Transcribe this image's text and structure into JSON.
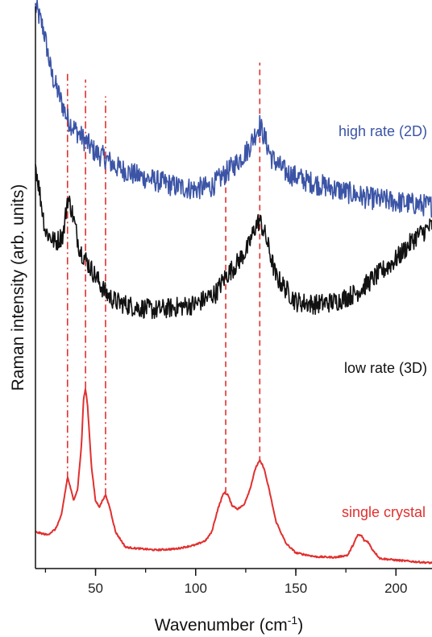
{
  "chart_data": {
    "type": "line",
    "title": "",
    "xlabel_main": "Wavenumber (cm",
    "xlabel_sup": "-1",
    "xlabel_close": ")",
    "ylabel": "Raman intensity (arb. units)",
    "xlim": [
      20,
      218
    ],
    "ylim": [
      0,
      100
    ],
    "xticks": [
      50,
      100,
      150,
      200
    ],
    "xtick_labels": [
      "50",
      "100",
      "150",
      "200"
    ],
    "yticks_shown": false,
    "grid": false,
    "series": [
      {
        "name": "high rate (2D)",
        "color": "#3b54a6",
        "points": [
          [
            20,
            100
          ],
          [
            24,
            96
          ],
          [
            28,
            88
          ],
          [
            32,
            84
          ],
          [
            36,
            80
          ],
          [
            40,
            78
          ],
          [
            45,
            76
          ],
          [
            50,
            74
          ],
          [
            55,
            73
          ],
          [
            60,
            71.5
          ],
          [
            70,
            70
          ],
          [
            80,
            69
          ],
          [
            90,
            68
          ],
          [
            100,
            67.5
          ],
          [
            108,
            68
          ],
          [
            114,
            70
          ],
          [
            120,
            72
          ],
          [
            126,
            74.5
          ],
          [
            130,
            77.5
          ],
          [
            132,
            79
          ],
          [
            134,
            77
          ],
          [
            138,
            73
          ],
          [
            145,
            70.5
          ],
          [
            155,
            69
          ],
          [
            165,
            68
          ],
          [
            175,
            67
          ],
          [
            185,
            66
          ],
          [
            195,
            65.5
          ],
          [
            205,
            65
          ],
          [
            218,
            64.5
          ]
        ],
        "noise": 2.0
      },
      {
        "name": "low rate (3D)",
        "color": "#111111",
        "points": [
          [
            20,
            72
          ],
          [
            25,
            60
          ],
          [
            30,
            58
          ],
          [
            34,
            59.5
          ],
          [
            36,
            66
          ],
          [
            38,
            64
          ],
          [
            42,
            57
          ],
          [
            45,
            55
          ],
          [
            50,
            52
          ],
          [
            55,
            49
          ],
          [
            60,
            47.5
          ],
          [
            70,
            46.5
          ],
          [
            80,
            46
          ],
          [
            90,
            46.5
          ],
          [
            100,
            47
          ],
          [
            110,
            49
          ],
          [
            115,
            52
          ],
          [
            120,
            54
          ],
          [
            126,
            57
          ],
          [
            130,
            61
          ],
          [
            132,
            62
          ],
          [
            135,
            59
          ],
          [
            140,
            52
          ],
          [
            150,
            47.5
          ],
          [
            160,
            47
          ],
          [
            170,
            47.5
          ],
          [
            180,
            49
          ],
          [
            190,
            52
          ],
          [
            200,
            55
          ],
          [
            210,
            59
          ],
          [
            218,
            61
          ]
        ],
        "noise": 1.8
      },
      {
        "name": "single crystal",
        "color": "#e0302f",
        "points": [
          [
            20,
            6.5
          ],
          [
            26,
            6
          ],
          [
            30,
            7
          ],
          [
            33,
            9.5
          ],
          [
            35,
            14
          ],
          [
            36,
            16.3
          ],
          [
            37,
            15
          ],
          [
            39,
            12.2
          ],
          [
            41,
            14
          ],
          [
            43,
            22
          ],
          [
            44,
            30
          ],
          [
            45,
            32
          ],
          [
            46,
            29
          ],
          [
            48,
            18
          ],
          [
            50,
            12
          ],
          [
            52,
            11
          ],
          [
            54,
            12.5
          ],
          [
            55,
            13
          ],
          [
            57,
            11
          ],
          [
            60,
            6.5
          ],
          [
            65,
            3.8
          ],
          [
            70,
            3.6
          ],
          [
            80,
            3.3
          ],
          [
            90,
            3.5
          ],
          [
            100,
            4.2
          ],
          [
            105,
            5
          ],
          [
            108,
            6.5
          ],
          [
            111,
            10.5
          ],
          [
            114,
            13.5
          ],
          [
            116,
            13.2
          ],
          [
            118,
            11.3
          ],
          [
            121,
            10.6
          ],
          [
            124,
            11.3
          ],
          [
            127,
            14
          ],
          [
            130,
            18
          ],
          [
            132,
            19.2
          ],
          [
            134,
            18
          ],
          [
            137,
            13.5
          ],
          [
            140,
            8.5
          ],
          [
            145,
            4.5
          ],
          [
            150,
            2.8
          ],
          [
            160,
            2.1
          ],
          [
            170,
            2
          ],
          [
            176,
            2.4
          ],
          [
            179,
            4.5
          ],
          [
            181,
            6
          ],
          [
            183,
            5.8
          ],
          [
            184,
            5
          ],
          [
            186,
            4.8
          ],
          [
            188,
            3.5
          ],
          [
            192,
            1.8
          ],
          [
            200,
            1.5
          ],
          [
            210,
            1.2
          ],
          [
            218,
            1
          ]
        ],
        "noise": 0.15
      }
    ],
    "reference_lines": [
      {
        "x": 36,
        "style": "dash-dot",
        "color": "#e0302f",
        "y_from": 16,
        "y_to": 88
      },
      {
        "x": 45,
        "style": "dash-dot",
        "color": "#e0302f",
        "y_from": 32,
        "y_to": 87
      },
      {
        "x": 55,
        "style": "dash-dot",
        "color": "#e0302f",
        "y_from": 13,
        "y_to": 84
      },
      {
        "x": 115,
        "style": "dashed",
        "color": "#e0302f",
        "y_from": 13.5,
        "y_to": 71
      },
      {
        "x": 132,
        "style": "dashed",
        "color": "#e0302f",
        "y_from": 19,
        "y_to": 90
      }
    ],
    "annotations": [
      {
        "text": "high rate (2D)",
        "series": "high rate (2D)"
      },
      {
        "text": "low rate (3D)",
        "series": "low rate (3D)"
      },
      {
        "text": "single crystal",
        "series": "single crystal"
      }
    ]
  }
}
